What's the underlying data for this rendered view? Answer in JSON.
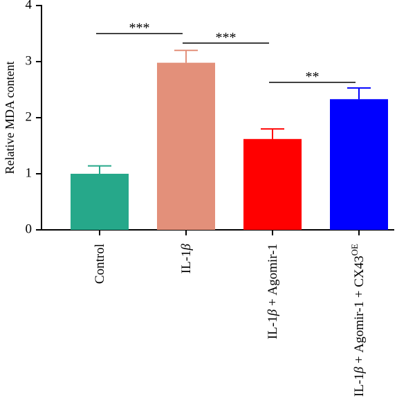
{
  "chart_data": {
    "type": "bar",
    "ylabel": "Relative MDA content",
    "xlabel": "",
    "ylim": [
      0,
      4
    ],
    "yticks": [
      0,
      1,
      2,
      3,
      4
    ],
    "grid": false,
    "categories": [
      {
        "base": "Control",
        "greek": "",
        "tail": "",
        "sup": ""
      },
      {
        "base": "IL-1",
        "greek": "β",
        "tail": "",
        "sup": ""
      },
      {
        "base": "IL-1",
        "greek": "β",
        "tail": " + Agomir-1",
        "sup": ""
      },
      {
        "base": "IL-1",
        "greek": "β",
        "tail": " + Agomir-1 + CX43",
        "sup": "OE"
      }
    ],
    "values": [
      1.0,
      2.98,
      1.62,
      2.33
    ],
    "errors": [
      0.14,
      0.22,
      0.18,
      0.2
    ],
    "colors": [
      "#26a88a",
      "#e3907a",
      "#ff0000",
      "#0000ff"
    ],
    "significance": [
      {
        "from": 0,
        "to": 1,
        "y": 3.5,
        "label": "***"
      },
      {
        "from": 1,
        "to": 2,
        "y": 3.33,
        "label": "***"
      },
      {
        "from": 2,
        "to": 3,
        "y": 2.63,
        "label": "**"
      }
    ]
  }
}
